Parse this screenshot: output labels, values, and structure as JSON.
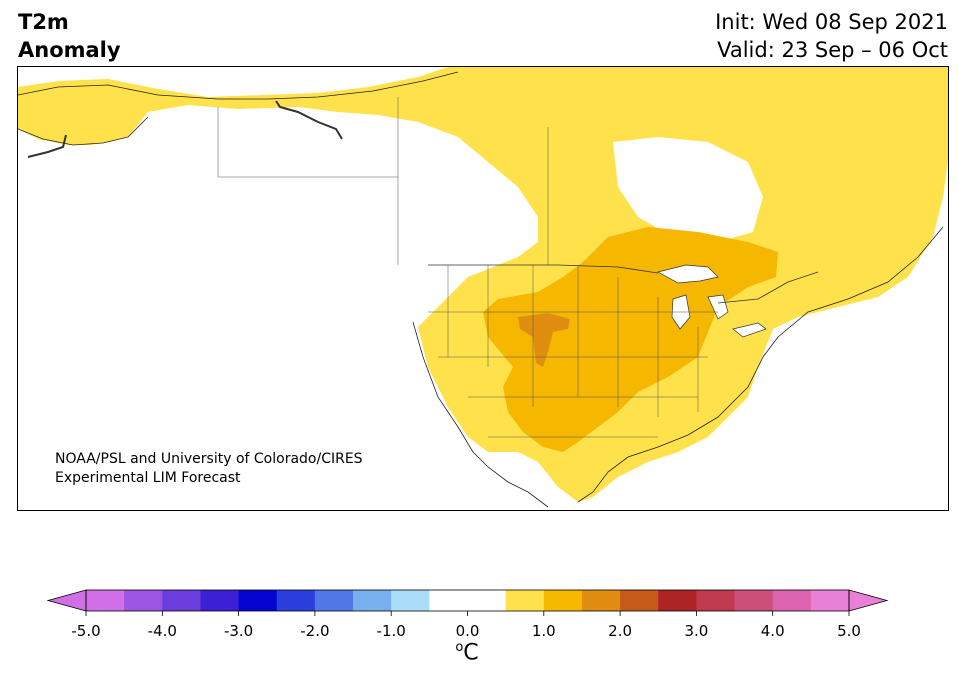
{
  "header": {
    "title_line1": "T2m",
    "title_line2": "Anomaly",
    "init_text": "Init: Wed 08 Sep 2021",
    "valid_text": "Valid: 23 Sep – 06 Oct"
  },
  "map": {
    "region": "North America",
    "credit_line1": "NOAA/PSL and University of Colorado/CIRES",
    "credit_line2": "Experimental LIM Forecast"
  },
  "colorbar": {
    "unit_sup": "o",
    "unit_base": "C",
    "ticks": [
      "-5.0",
      "-4.0",
      "-3.0",
      "-2.0",
      "-1.0",
      "0.0",
      "1.0",
      "2.0",
      "3.0",
      "4.0",
      "5.0"
    ],
    "colors": [
      "#d16fe6",
      "#9c55e0",
      "#6a3ddc",
      "#3c20d6",
      "#0505d2",
      "#2a3fdc",
      "#4f78e6",
      "#78b0ee",
      "#abdcf8",
      "#ffffff",
      "#ffffff",
      "#ffe14c",
      "#f5b700",
      "#e08d12",
      "#c65a18",
      "#ad2424",
      "#c03a4f",
      "#cc4f7a",
      "#dc63b0",
      "#e880d8"
    ],
    "low_extend_color": "#d16fe6",
    "high_extend_color": "#e880d8"
  }
}
